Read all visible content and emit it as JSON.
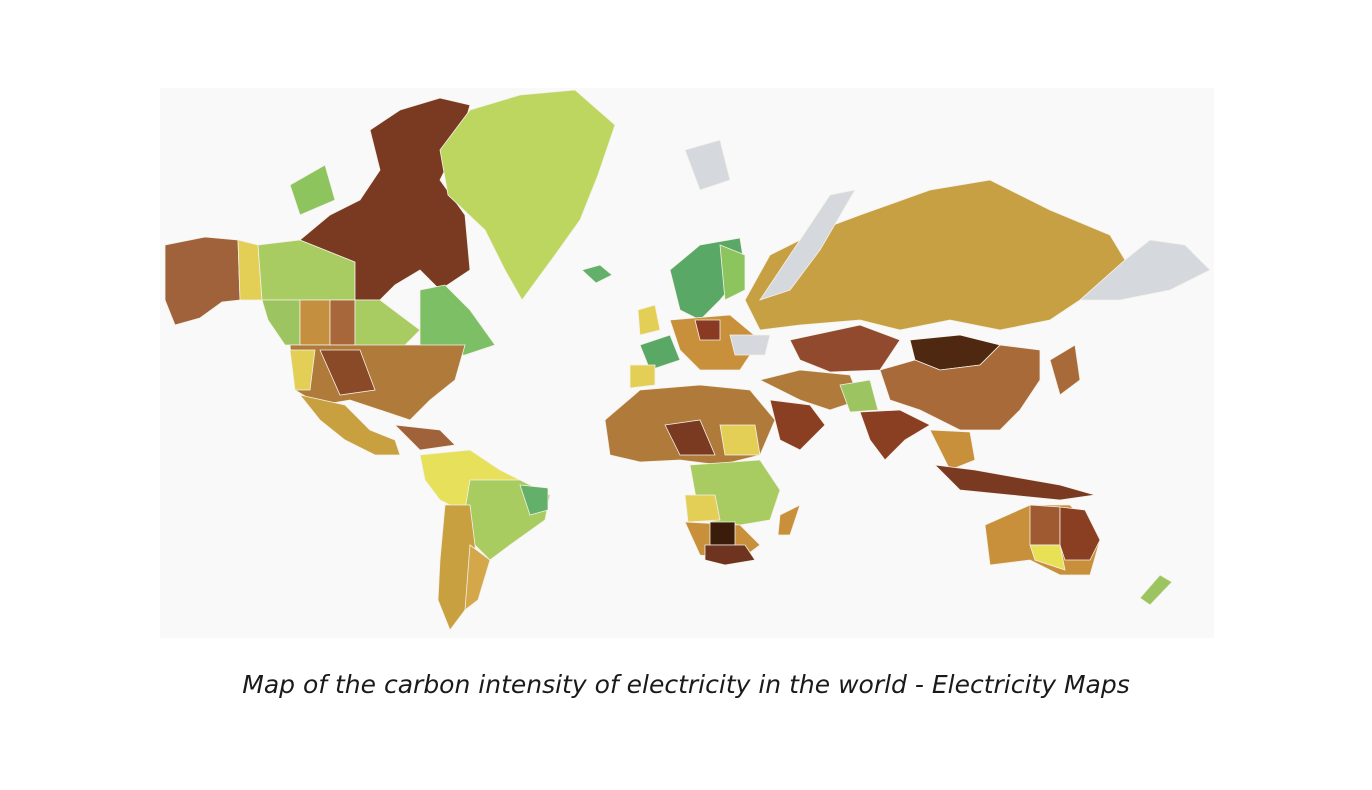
{
  "caption": "Map of the carbon intensity of electricity in the world - Electricity Maps"
}
